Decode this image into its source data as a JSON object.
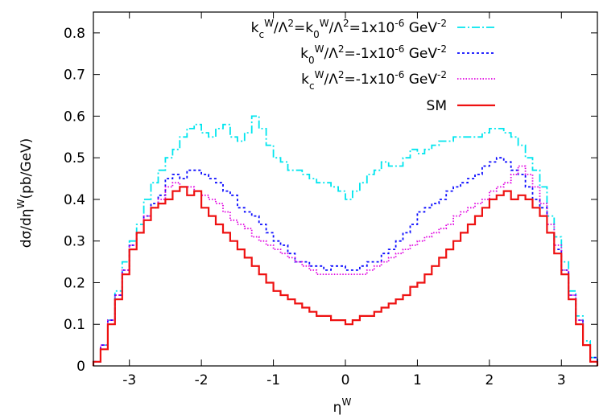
{
  "chart_data": {
    "type": "line",
    "xlim": [
      -3.5,
      3.5
    ],
    "ylim": [
      0,
      0.85
    ],
    "x_ticks": [
      -3,
      -2,
      -1,
      0,
      1,
      2,
      3
    ],
    "y_ticks": [
      0,
      0.1,
      0.2,
      0.3,
      0.4,
      0.5,
      0.6,
      0.7,
      0.8
    ],
    "x_tick_labels": [
      "-3",
      "-2",
      "-1",
      "0",
      "1",
      "2",
      "3"
    ],
    "y_tick_labels": [
      "0",
      "0.1",
      "0.2",
      "0.3",
      "0.4",
      "0.5",
      "0.6",
      "0.7",
      "0.8"
    ],
    "xlabel": {
      "base": "η",
      "sup": "W"
    },
    "ylabel": {
      "main": "dσ/dη",
      "sup": "W",
      "tail": "(pb/GeV)"
    },
    "grid": false,
    "legend_position": "top-right",
    "bin_edges": [
      -3.5,
      -3.4,
      -3.3,
      -3.2,
      -3.1,
      -3.0,
      -2.9,
      -2.8,
      -2.7,
      -2.6,
      -2.5,
      -2.4,
      -2.3,
      -2.2,
      -2.1,
      -2.0,
      -1.9,
      -1.8,
      -1.7,
      -1.6,
      -1.5,
      -1.4,
      -1.3,
      -1.2,
      -1.1,
      -1.0,
      -0.9,
      -0.8,
      -0.7,
      -0.6,
      -0.5,
      -0.4,
      -0.3,
      -0.2,
      -0.1,
      0.0,
      0.1,
      0.2,
      0.3,
      0.4,
      0.5,
      0.6,
      0.7,
      0.8,
      0.9,
      1.0,
      1.1,
      1.2,
      1.3,
      1.4,
      1.5,
      1.6,
      1.7,
      1.8,
      1.9,
      2.0,
      2.1,
      2.2,
      2.3,
      2.4,
      2.5,
      2.6,
      2.7,
      2.8,
      2.9,
      3.0,
      3.1,
      3.2,
      3.3,
      3.4,
      3.5
    ],
    "series": [
      {
        "name": "k_c^W/Λ^2=k_0^W/Λ^2=1x10^-6 GeV^-2",
        "legend": {
          "parts": [
            [
              "k",
              ""
            ],
            [
              "c",
              "sub"
            ],
            [
              "W",
              "sup"
            ],
            [
              "/Λ",
              ""
            ],
            [
              "2",
              "sup"
            ],
            [
              "=k",
              ""
            ],
            [
              "0",
              "sub"
            ],
            [
              "W",
              "sup"
            ],
            [
              "/Λ",
              ""
            ],
            [
              "2",
              "sup"
            ],
            [
              "=1x10",
              ""
            ],
            [
              "-6",
              "sup"
            ],
            [
              " GeV",
              ""
            ],
            [
              "-2",
              "sup"
            ]
          ]
        },
        "color": "#00e5ee",
        "dash": "10,3,2,3",
        "values": [
          0.01,
          0.05,
          0.11,
          0.18,
          0.25,
          0.3,
          0.34,
          0.4,
          0.44,
          0.47,
          0.5,
          0.52,
          0.55,
          0.57,
          0.58,
          0.56,
          0.55,
          0.57,
          0.58,
          0.55,
          0.54,
          0.56,
          0.6,
          0.57,
          0.53,
          0.5,
          0.49,
          0.47,
          0.47,
          0.46,
          0.45,
          0.44,
          0.44,
          0.43,
          0.42,
          0.4,
          0.42,
          0.44,
          0.46,
          0.47,
          0.49,
          0.48,
          0.48,
          0.5,
          0.52,
          0.51,
          0.52,
          0.53,
          0.54,
          0.54,
          0.55,
          0.55,
          0.55,
          0.55,
          0.56,
          0.57,
          0.57,
          0.56,
          0.55,
          0.53,
          0.5,
          0.47,
          0.43,
          0.36,
          0.31,
          0.25,
          0.18,
          0.12,
          0.06,
          0.02
        ]
      },
      {
        "name": "k_0^W/Λ^2=-1x10^-6 GeV^-2",
        "legend": {
          "parts": [
            [
              "k",
              ""
            ],
            [
              "0",
              "sub"
            ],
            [
              "W",
              "sup"
            ],
            [
              "/Λ",
              ""
            ],
            [
              "2",
              "sup"
            ],
            [
              "=-1x10",
              ""
            ],
            [
              "-6",
              "sup"
            ],
            [
              " GeV",
              ""
            ],
            [
              "-2",
              "sup"
            ]
          ]
        },
        "color": "#0a0aff",
        "dash": "3,3",
        "values": [
          0.01,
          0.05,
          0.11,
          0.17,
          0.23,
          0.29,
          0.32,
          0.36,
          0.39,
          0.41,
          0.45,
          0.46,
          0.45,
          0.47,
          0.47,
          0.46,
          0.45,
          0.44,
          0.42,
          0.41,
          0.38,
          0.37,
          0.36,
          0.34,
          0.32,
          0.3,
          0.29,
          0.27,
          0.25,
          0.25,
          0.24,
          0.24,
          0.23,
          0.24,
          0.24,
          0.23,
          0.23,
          0.24,
          0.25,
          0.25,
          0.27,
          0.28,
          0.3,
          0.32,
          0.34,
          0.37,
          0.38,
          0.39,
          0.4,
          0.42,
          0.43,
          0.44,
          0.45,
          0.46,
          0.48,
          0.49,
          0.5,
          0.49,
          0.47,
          0.46,
          0.43,
          0.4,
          0.38,
          0.32,
          0.28,
          0.23,
          0.17,
          0.11,
          0.05,
          0.02
        ]
      },
      {
        "name": "k_c^W/Λ^2=-1x10^-6 GeV^-2",
        "legend": {
          "parts": [
            [
              "k",
              ""
            ],
            [
              "c",
              "sub"
            ],
            [
              "W",
              "sup"
            ],
            [
              "/Λ",
              ""
            ],
            [
              "2",
              "sup"
            ],
            [
              "=-1x10",
              ""
            ],
            [
              "-6",
              "sup"
            ],
            [
              " GeV",
              ""
            ],
            [
              "-2",
              "sup"
            ]
          ]
        },
        "color": "#e000e0",
        "dash": "1.5,2",
        "values": [
          0.01,
          0.05,
          0.11,
          0.17,
          0.23,
          0.29,
          0.32,
          0.36,
          0.38,
          0.4,
          0.43,
          0.44,
          0.43,
          0.43,
          0.42,
          0.41,
          0.4,
          0.39,
          0.37,
          0.35,
          0.34,
          0.33,
          0.31,
          0.3,
          0.29,
          0.28,
          0.27,
          0.26,
          0.25,
          0.24,
          0.23,
          0.22,
          0.22,
          0.22,
          0.22,
          0.22,
          0.22,
          0.22,
          0.23,
          0.24,
          0.25,
          0.26,
          0.27,
          0.28,
          0.29,
          0.3,
          0.31,
          0.32,
          0.33,
          0.34,
          0.36,
          0.37,
          0.38,
          0.39,
          0.4,
          0.42,
          0.43,
          0.44,
          0.46,
          0.48,
          0.46,
          0.43,
          0.39,
          0.34,
          0.29,
          0.23,
          0.17,
          0.11,
          0.05,
          0.01
        ]
      },
      {
        "name": "SM",
        "legend": {
          "parts": [
            [
              "SM",
              ""
            ]
          ]
        },
        "color": "#ee1111",
        "dash": "",
        "values": [
          0.01,
          0.04,
          0.1,
          0.16,
          0.22,
          0.28,
          0.32,
          0.35,
          0.38,
          0.39,
          0.4,
          0.42,
          0.43,
          0.41,
          0.42,
          0.38,
          0.36,
          0.34,
          0.32,
          0.3,
          0.28,
          0.26,
          0.24,
          0.22,
          0.2,
          0.18,
          0.17,
          0.16,
          0.15,
          0.14,
          0.13,
          0.12,
          0.12,
          0.11,
          0.11,
          0.1,
          0.11,
          0.12,
          0.12,
          0.13,
          0.14,
          0.15,
          0.16,
          0.17,
          0.19,
          0.2,
          0.22,
          0.24,
          0.26,
          0.28,
          0.3,
          0.32,
          0.34,
          0.36,
          0.38,
          0.4,
          0.41,
          0.42,
          0.4,
          0.41,
          0.4,
          0.38,
          0.36,
          0.32,
          0.27,
          0.22,
          0.16,
          0.1,
          0.05,
          0.01
        ]
      }
    ]
  }
}
